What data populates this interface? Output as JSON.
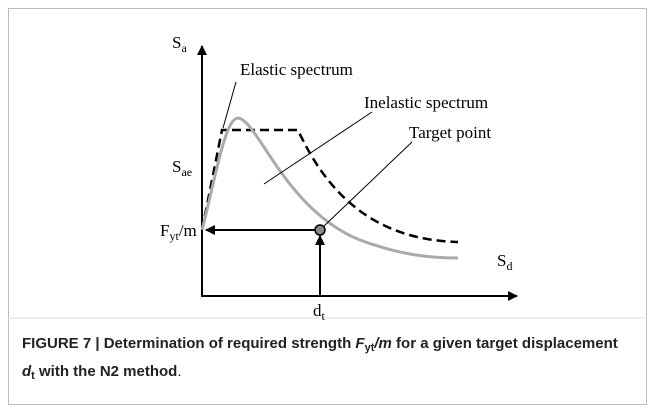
{
  "figure": {
    "labels": {
      "sa": {
        "base": "S",
        "sub": "a"
      },
      "elastic": "Elastic spectrum",
      "inelastic": "Inelastic spectrum",
      "target": "Target point",
      "sae": {
        "base": "S",
        "sub": "ae"
      },
      "fyt": {
        "base": "F",
        "sub": "yt",
        "rest": "/m"
      },
      "sd": {
        "base": "S",
        "sub": "d"
      },
      "dt": {
        "base": "d",
        "sub": "t"
      }
    },
    "caption": [
      {
        "text": "FIGURE 7 | Determination of required strength ",
        "style": "bold"
      },
      {
        "text": "F",
        "style": "bold-italic"
      },
      {
        "text": "yt",
        "style": "bold-sub"
      },
      {
        "text": "/m",
        "style": "bold-italic"
      },
      {
        "text": " for a given target displacement ",
        "style": "bold"
      },
      {
        "text": "d",
        "style": "bold-italic"
      },
      {
        "text": "t",
        "style": "bold-sub"
      },
      {
        "text": " with the N2 method",
        "style": "bold"
      },
      {
        "text": ".",
        "style": "normal"
      }
    ]
  }
}
